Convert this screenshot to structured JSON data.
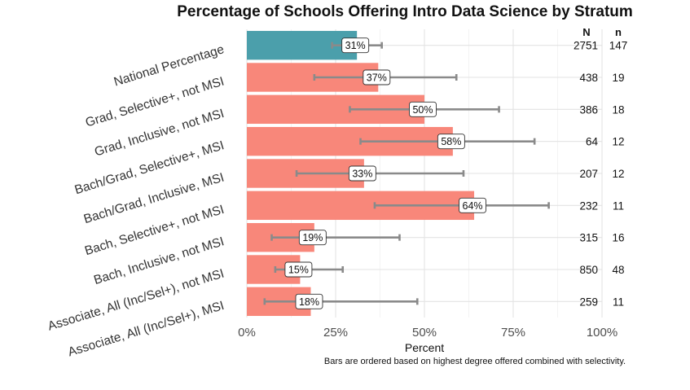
{
  "chart_data": {
    "type": "bar",
    "orientation": "horizontal",
    "title": "Percentage of Schools Offering Intro Data Science by Stratum",
    "xlabel": "Percent",
    "ylabel": "",
    "xlim": [
      0,
      100
    ],
    "xticks": [
      0,
      25,
      50,
      75,
      100
    ],
    "xtick_labels": [
      "0%",
      "25%",
      "50%",
      "75%",
      "100%"
    ],
    "caption": "Bars are ordered based on highest degree offered combined with selectivity.",
    "column_headers": {
      "N": "N",
      "n": "n"
    },
    "colors": {
      "national": "#4b9fab",
      "stratum": "#f8877a",
      "error_bar": "#8a8a8a"
    },
    "grid": true,
    "categories": [
      {
        "label": "National Percentage",
        "value": 31,
        "value_label": "31%",
        "ci": [
          24,
          38
        ],
        "N": "2751",
        "n": "147",
        "highlight": true
      },
      {
        "label": "Grad, Selective+, not MSI",
        "value": 37,
        "value_label": "37%",
        "ci": [
          19,
          59
        ],
        "N": "438",
        "n": "19",
        "highlight": false
      },
      {
        "label": "Grad, Inclusive, not MSI",
        "value": 50,
        "value_label": "50%",
        "ci": [
          29,
          71
        ],
        "N": "386",
        "n": "18",
        "highlight": false
      },
      {
        "label": "Bach/Grad, Selective+, MSI",
        "value": 58,
        "value_label": "58%",
        "ci": [
          32,
          81
        ],
        "N": "64",
        "n": "12",
        "highlight": false
      },
      {
        "label": "Bach/Grad, Inclusive, MSI",
        "value": 33,
        "value_label": "33%",
        "ci": [
          14,
          61
        ],
        "N": "207",
        "n": "12",
        "highlight": false
      },
      {
        "label": "Bach, Selective+, not MSI",
        "value": 64,
        "value_label": "64%",
        "ci": [
          36,
          85
        ],
        "N": "232",
        "n": "11",
        "highlight": false
      },
      {
        "label": "Bach, Inclusive, not MSI",
        "value": 19,
        "value_label": "19%",
        "ci": [
          7,
          43
        ],
        "N": "315",
        "n": "16",
        "highlight": false
      },
      {
        "label": "Associate, All (Inc/Sel+), not MSI",
        "value": 15,
        "value_label": "15%",
        "ci": [
          8,
          27
        ],
        "N": "850",
        "n": "48",
        "highlight": false
      },
      {
        "label": "Associate, All (Inc/Sel+), MSI",
        "value": 18,
        "value_label": "18%",
        "ci": [
          5,
          48
        ],
        "N": "259",
        "n": "11",
        "highlight": false
      }
    ]
  }
}
